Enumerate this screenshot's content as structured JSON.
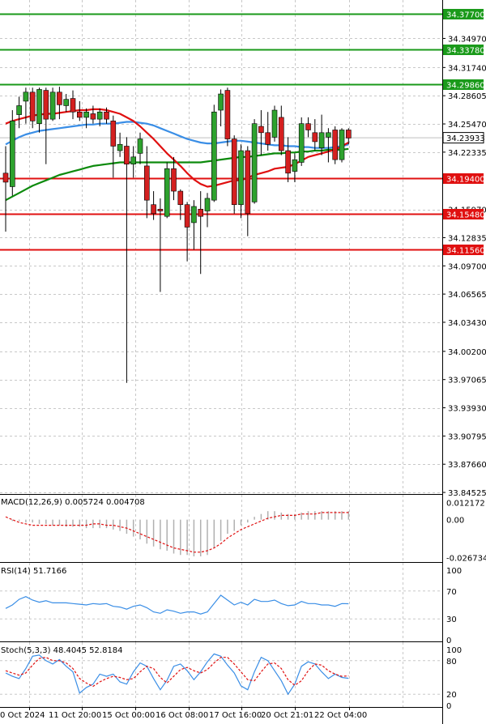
{
  "chart_data": {
    "type": "candlestick",
    "colors": {
      "up": "#2ea22e",
      "down": "#d42020",
      "ma_fast": "#e01010",
      "ma_mid": "#3a8ee6",
      "ma_slow": "#0c8a0c",
      "support": "#e01010",
      "resistance": "#1a9a1a",
      "macd_hist": "#b0b0b0",
      "macd_signal": "#e01010",
      "rsi": "#3a8ee6",
      "stoch_main": "#3a8ee6",
      "stoch_signal": "#e01010",
      "grid": "#c8c8c8"
    },
    "price_axis": {
      "ylim": [
        33.8435,
        34.3924
      ],
      "ticks": [
        "34.34970",
        "34.31740",
        "34.28605",
        "34.25470",
        "34.22335",
        "34.15970",
        "34.12835",
        "34.09700",
        "34.06565",
        "34.03430",
        "34.00200",
        "33.97065",
        "33.93930",
        "33.90795",
        "33.87660",
        "33.84525"
      ]
    },
    "levels": [
      {
        "label": "34.37700",
        "value": 34.377,
        "kind": "resistance"
      },
      {
        "label": "34.33780",
        "value": 34.3378,
        "kind": "resistance"
      },
      {
        "label": "34.29860",
        "value": 34.2986,
        "kind": "resistance"
      },
      {
        "label": "34.19400",
        "value": 34.194,
        "kind": "support"
      },
      {
        "label": "34.15480",
        "value": 34.1548,
        "kind": "support"
      },
      {
        "label": "34.11560",
        "value": 34.1156,
        "kind": "support"
      }
    ],
    "current_price": {
      "label": "34.23933",
      "value": 34.23933
    },
    "candles": [
      [
        34.2,
        34.23,
        34.135,
        34.19
      ],
      [
        34.185,
        34.27,
        34.175,
        34.258
      ],
      [
        34.265,
        34.285,
        34.25,
        34.275
      ],
      [
        34.28,
        34.295,
        34.255,
        34.29
      ],
      [
        34.29,
        34.295,
        34.25,
        34.258
      ],
      [
        34.255,
        34.295,
        34.245,
        34.293
      ],
      [
        34.292,
        34.295,
        34.21,
        34.26
      ],
      [
        34.26,
        34.295,
        34.258,
        34.29
      ],
      [
        34.29,
        34.296,
        34.26,
        34.276
      ],
      [
        34.275,
        34.288,
        34.268,
        34.282
      ],
      [
        34.283,
        34.292,
        34.26,
        34.268
      ],
      [
        34.268,
        34.28,
        34.258,
        34.262
      ],
      [
        34.262,
        34.272,
        34.25,
        34.268
      ],
      [
        34.266,
        34.275,
        34.255,
        34.26
      ],
      [
        34.26,
        34.272,
        34.252,
        34.268
      ],
      [
        34.268,
        34.273,
        34.255,
        34.26
      ],
      [
        34.258,
        34.264,
        34.195,
        34.23
      ],
      [
        34.225,
        34.245,
        34.218,
        34.232
      ],
      [
        34.23,
        34.24,
        33.967,
        34.21
      ],
      [
        34.21,
        34.23,
        34.195,
        34.218
      ],
      [
        34.222,
        34.245,
        34.21,
        34.238
      ],
      [
        34.208,
        34.23,
        34.15,
        34.17
      ],
      [
        34.165,
        34.18,
        34.148,
        34.155
      ],
      [
        34.16,
        34.172,
        34.068,
        34.158
      ],
      [
        34.152,
        34.212,
        34.15,
        34.205
      ],
      [
        34.205,
        34.218,
        34.17,
        34.18
      ],
      [
        34.18,
        34.182,
        34.148,
        34.165
      ],
      [
        34.165,
        34.168,
        34.102,
        34.14
      ],
      [
        34.145,
        34.17,
        34.115,
        34.163
      ],
      [
        34.16,
        34.18,
        34.088,
        34.152
      ],
      [
        34.158,
        34.178,
        34.14,
        34.172
      ],
      [
        34.17,
        34.276,
        34.168,
        34.268
      ],
      [
        34.27,
        34.293,
        34.252,
        34.288
      ],
      [
        34.292,
        34.295,
        34.23,
        34.238
      ],
      [
        34.238,
        34.242,
        34.155,
        34.165
      ],
      [
        34.165,
        34.232,
        34.15,
        34.225
      ],
      [
        34.225,
        34.23,
        34.13,
        34.155
      ],
      [
        34.168,
        34.26,
        34.166,
        34.255
      ],
      [
        34.252,
        34.27,
        34.22,
        34.245
      ],
      [
        34.245,
        34.268,
        34.225,
        34.232
      ],
      [
        34.24,
        34.275,
        34.235,
        34.27
      ],
      [
        34.262,
        34.275,
        34.22,
        34.225
      ],
      [
        34.225,
        34.24,
        34.19,
        34.2
      ],
      [
        34.202,
        34.222,
        34.19,
        34.215
      ],
      [
        34.212,
        34.262,
        34.208,
        34.255
      ],
      [
        34.255,
        34.262,
        34.24,
        34.248
      ],
      [
        34.245,
        34.26,
        34.225,
        34.235
      ],
      [
        34.228,
        34.265,
        34.22,
        34.245
      ],
      [
        34.24,
        34.25,
        34.212,
        34.245
      ],
      [
        34.248,
        34.252,
        34.21,
        34.215
      ],
      [
        34.215,
        34.25,
        34.212,
        34.248
      ],
      [
        34.248,
        34.25,
        34.232,
        34.239
      ]
    ],
    "ma_fast": [
      34.255,
      34.258,
      34.26,
      34.262,
      34.264,
      34.265,
      34.266,
      34.266,
      34.267,
      34.268,
      34.269,
      34.27,
      34.27,
      34.271,
      34.271,
      34.27,
      34.268,
      34.266,
      34.262,
      34.258,
      34.252,
      34.245,
      34.238,
      34.23,
      34.222,
      34.215,
      34.208,
      34.2,
      34.193,
      34.188,
      34.185,
      34.186,
      34.188,
      34.19,
      34.192,
      34.192,
      34.195,
      34.198,
      34.2,
      34.202,
      34.205,
      34.206,
      34.207,
      34.21,
      34.214,
      34.218,
      34.22,
      34.222,
      34.224,
      34.226,
      34.23,
      34.234
    ],
    "ma_mid": [
      34.232,
      34.236,
      34.24,
      34.243,
      34.245,
      34.247,
      34.248,
      34.249,
      34.25,
      34.251,
      34.252,
      34.253,
      34.254,
      34.254,
      34.255,
      34.255,
      34.255,
      34.256,
      34.257,
      34.257,
      34.256,
      34.255,
      34.253,
      34.25,
      34.247,
      34.244,
      34.241,
      34.238,
      34.236,
      34.234,
      34.233,
      34.233,
      34.234,
      34.235,
      34.236,
      34.236,
      34.235,
      34.234,
      34.233,
      34.232,
      34.231,
      34.231,
      34.23,
      34.23,
      34.229,
      34.229,
      34.228,
      34.228,
      34.228,
      34.229,
      34.23,
      34.232
    ],
    "ma_slow": [
      34.17,
      34.174,
      34.178,
      34.182,
      34.186,
      34.189,
      34.192,
      34.195,
      34.198,
      34.2,
      34.202,
      34.204,
      34.206,
      34.208,
      34.209,
      34.21,
      34.211,
      34.212,
      34.212,
      34.212,
      34.212,
      34.212,
      34.212,
      34.212,
      34.212,
      34.212,
      34.212,
      34.212,
      34.212,
      34.212,
      34.213,
      34.214,
      34.215,
      34.216,
      34.217,
      34.218,
      34.218,
      34.219,
      34.22,
      34.221,
      34.222,
      34.222,
      34.223,
      34.223,
      34.224,
      34.224,
      34.225,
      34.225,
      34.226,
      34.226,
      34.226,
      34.227
    ],
    "macd": {
      "title": "MACD(12,26,9) 0.005724 0.004708",
      "ticks": [
        "0.012172",
        "0.00",
        "-0.026734"
      ],
      "ylim": [
        -0.03,
        0.017
      ],
      "hist": [
        0.0,
        -0.001,
        -0.001,
        -0.002,
        -0.002,
        -0.003,
        -0.003,
        -0.004,
        -0.004,
        -0.005,
        -0.005,
        -0.005,
        -0.006,
        -0.006,
        -0.006,
        -0.006,
        -0.007,
        -0.008,
        -0.01,
        -0.012,
        -0.014,
        -0.017,
        -0.019,
        -0.021,
        -0.022,
        -0.024,
        -0.025,
        -0.025,
        -0.026,
        -0.026,
        -0.025,
        -0.02,
        -0.015,
        -0.01,
        -0.008,
        -0.004,
        -0.002,
        0.002,
        0.004,
        0.006,
        0.006,
        0.005,
        0.004,
        0.004,
        0.005,
        0.006,
        0.006,
        0.006,
        0.006,
        0.006,
        0.006,
        0.006
      ],
      "signal": [
        0.002,
        0.0,
        -0.002,
        -0.003,
        -0.004,
        -0.004,
        -0.004,
        -0.004,
        -0.004,
        -0.004,
        -0.004,
        -0.004,
        -0.004,
        -0.003,
        -0.003,
        -0.004,
        -0.004,
        -0.005,
        -0.006,
        -0.008,
        -0.01,
        -0.012,
        -0.014,
        -0.016,
        -0.018,
        -0.02,
        -0.021,
        -0.022,
        -0.023,
        -0.023,
        -0.022,
        -0.02,
        -0.017,
        -0.013,
        -0.01,
        -0.007,
        -0.005,
        -0.003,
        -0.001,
        0.001,
        0.002,
        0.003,
        0.003,
        0.003,
        0.004,
        0.004,
        0.004,
        0.005,
        0.005,
        0.005,
        0.005,
        0.005
      ]
    },
    "rsi": {
      "title": "RSI(14) 51.7166",
      "ticks": [
        "100",
        "70",
        "30",
        "0"
      ],
      "ylim": [
        0,
        100
      ],
      "values": [
        45,
        50,
        58,
        62,
        57,
        54,
        56,
        53,
        53,
        53,
        52,
        51,
        50,
        52,
        51,
        52,
        48,
        47,
        44,
        48,
        50,
        46,
        40,
        38,
        43,
        41,
        38,
        40,
        40,
        37,
        40,
        52,
        64,
        57,
        50,
        54,
        50,
        58,
        55,
        55,
        57,
        52,
        49,
        50,
        55,
        52,
        52,
        50,
        50,
        48,
        52,
        51.7
      ]
    },
    "stoch": {
      "title": "Stoch(5,3,3) 48.4045 52.8184",
      "ticks": [
        "100",
        "80",
        "20",
        "0"
      ],
      "ylim": [
        0,
        100
      ],
      "main": [
        58,
        52,
        48,
        66,
        88,
        90,
        80,
        74,
        82,
        70,
        60,
        22,
        32,
        38,
        56,
        52,
        56,
        42,
        38,
        60,
        76,
        70,
        48,
        28,
        45,
        70,
        74,
        62,
        46,
        60,
        78,
        92,
        88,
        72,
        58,
        35,
        28,
        60,
        86,
        80,
        62,
        44,
        20,
        38,
        70,
        78,
        74,
        60,
        48,
        56,
        50,
        48.4
      ],
      "signal": [
        62,
        58,
        54,
        58,
        72,
        84,
        86,
        80,
        80,
        76,
        66,
        48,
        40,
        34,
        42,
        48,
        52,
        50,
        46,
        48,
        60,
        70,
        66,
        50,
        40,
        52,
        64,
        68,
        62,
        58,
        64,
        76,
        86,
        86,
        74,
        60,
        46,
        44,
        60,
        74,
        76,
        66,
        46,
        36,
        44,
        62,
        74,
        72,
        62,
        56,
        52,
        52.8
      ]
    },
    "time_labels": [
      "0 Oct 2024",
      "11 Oct 20:00",
      "15 Oct 00:00",
      "16 Oct 08:00",
      "17 Oct 16:00",
      "20 Oct 21:01",
      "22 Oct 04:00"
    ]
  }
}
